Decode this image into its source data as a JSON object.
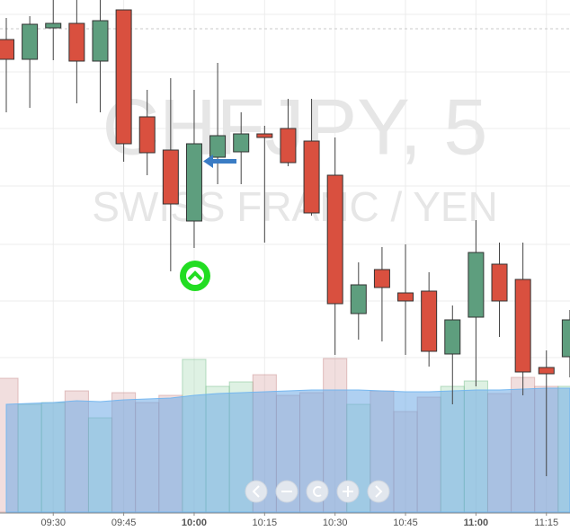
{
  "chart_data": {
    "type": "candlestick",
    "title": "CHFJPY, 5",
    "subtitle": "SWISS FRANC / YEN",
    "categories": [
      null,
      null,
      "09:30",
      null,
      null,
      "09:45",
      null,
      null,
      "10:00",
      null,
      null,
      "10:15",
      null,
      null,
      "10:30",
      null,
      null,
      "10:45",
      null,
      null,
      "11:00",
      null,
      null,
      "11:15",
      null
    ],
    "open": [
      526,
      504,
      539,
      544,
      502,
      559,
      440,
      403,
      324,
      395,
      401,
      421,
      427,
      413,
      375,
      221,
      270,
      244,
      246,
      176,
      217,
      276,
      259,
      161,
      173
    ],
    "high": [
      550,
      552,
      570,
      570,
      570,
      559,
      470,
      483,
      470,
      500,
      445,
      430,
      460,
      460,
      417,
      278,
      295,
      298,
      267,
      230,
      325,
      300,
      300,
      180,
      225
    ],
    "low": [
      445,
      450,
      503,
      455,
      445,
      390,
      375,
      268,
      294,
      365,
      365,
      300,
      385,
      330,
      175,
      192,
      190,
      175,
      162,
      120,
      140,
      195,
      130,
      40,
      150
    ],
    "close": [
      504,
      543,
      544,
      502,
      547,
      410,
      400,
      343,
      410,
      419,
      421,
      417,
      389,
      333,
      232,
      253,
      250,
      235,
      179,
      214,
      289,
      235,
      156,
      154,
      214
    ],
    "volume": [
      149,
      120,
      122,
      135,
      105,
      133,
      122,
      130,
      170,
      140,
      145,
      153,
      130,
      133,
      171,
      120,
      135,
      112,
      128,
      140,
      146,
      132,
      150,
      140,
      140
    ],
    "volume_ma": [
      120,
      121,
      122,
      124,
      123,
      125,
      126,
      127,
      130,
      132,
      133,
      134,
      135,
      136,
      136,
      136,
      135,
      134,
      134,
      135,
      136,
      136,
      137,
      138,
      138
    ],
    "up_color": "#5e9e7e",
    "down_color": "#d9503f",
    "ylim": [
      0,
      570
    ],
    "volume_ylim": [
      0,
      570
    ],
    "price_line": 538
  }
}
